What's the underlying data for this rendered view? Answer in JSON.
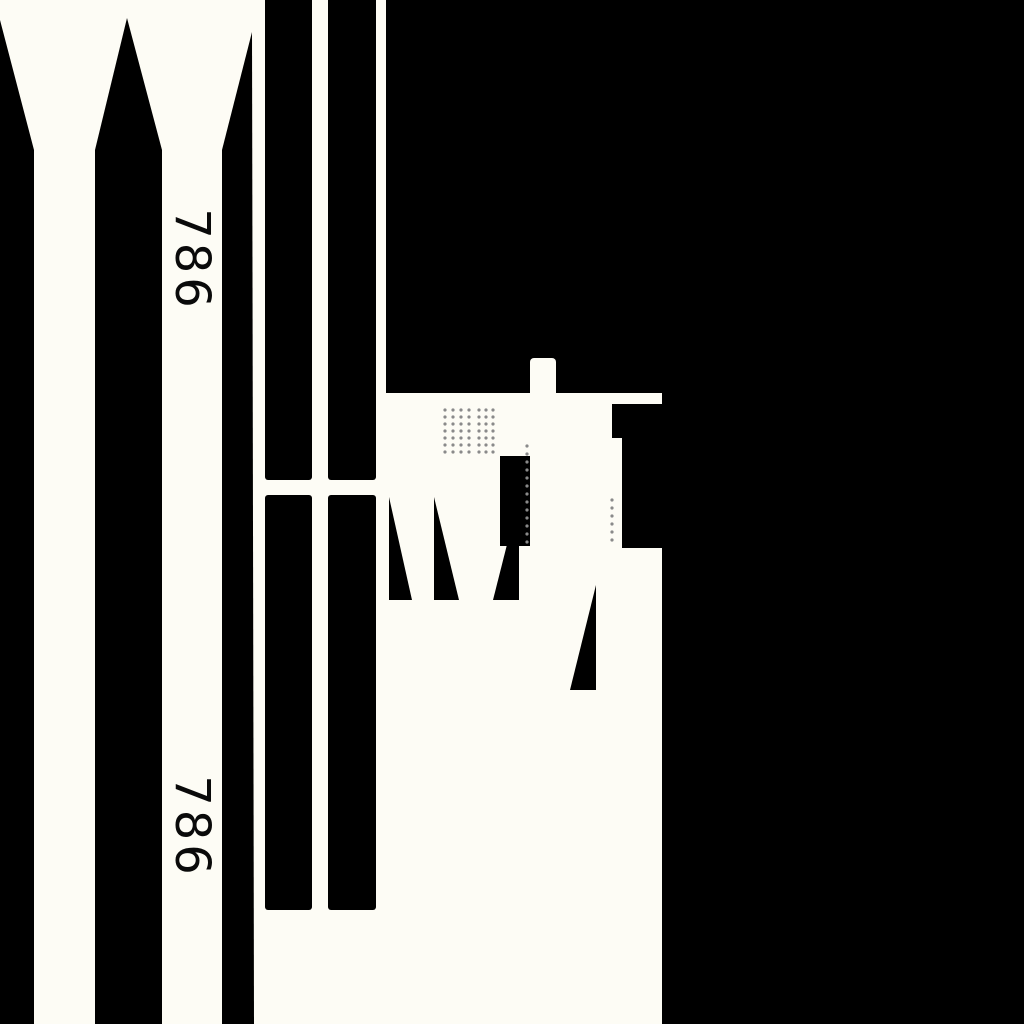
{
  "colors": {
    "background": "#000000",
    "surface": "#fdfcf5",
    "marking": "#000000",
    "dots": "#8a8a8a"
  },
  "labels": {
    "upper": "786",
    "lower": "786"
  }
}
